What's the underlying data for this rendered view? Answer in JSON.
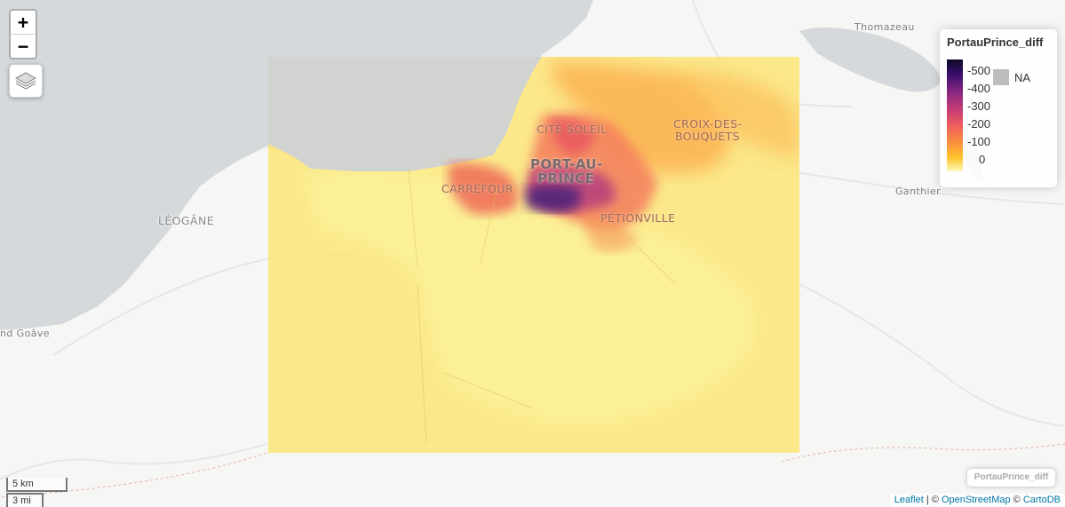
{
  "map": {
    "place_labels": {
      "thomazeau": "Thomazeau",
      "cite_soleil": "CITÉ SOLEIL",
      "croix_line1": "CROIX-DES-",
      "croix_line2": "BOUQUETS",
      "port_line1": "PORT-AU-",
      "port_line2": "PRINCE",
      "carrefour": "CARREFOUR",
      "petionville": "PÉTIONVILLE",
      "leogane": "LÉOGÂNE",
      "ganthier": "Ganthier",
      "grand_goave": "nd Goâve"
    },
    "colors": {
      "water": "#d5d9dc",
      "land": "#f6f6f4",
      "overlay_base": "#fde46b"
    }
  },
  "controls": {
    "zoom_in": "+",
    "zoom_out": "−",
    "layers_icon": "layers-icon"
  },
  "legend": {
    "title": "PortauPrince_diff",
    "ticks": [
      "-500",
      "-400",
      "-300",
      "-200",
      "-100",
      "0"
    ],
    "na_label": "NA",
    "palette": [
      "#0d0826",
      "#3b0f6f",
      "#8c2981",
      "#c73d73",
      "#f1605d",
      "#fb8f3f",
      "#fec52e",
      "#fcfdbf"
    ],
    "na_color": "#bdbdbd"
  },
  "infobox": {
    "label": "PortauPrince_diff"
  },
  "scale": {
    "metric": "5 km",
    "imperial": "3 mi"
  },
  "attribution": {
    "leaflet": "Leaflet",
    "sep1": " | © ",
    "osm": "OpenStreetMap",
    "sep2": " © ",
    "carto": "CartoDB"
  }
}
